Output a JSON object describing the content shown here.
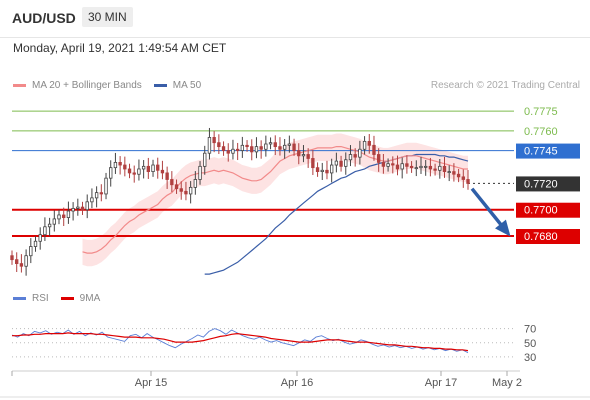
{
  "header": {
    "pair": "AUD/USD",
    "interval": "30 MIN",
    "datetime": "Monday, April 19, 2021 1:49:54 AM CET"
  },
  "legend": {
    "ma20": "MA 20 + Bollinger Bands",
    "ma50": "MA 50",
    "credit": "Research © 2021 Trading Central",
    "rsi": "RSI",
    "ma9": "9MA"
  },
  "colors": {
    "ma20": "#f28a8a",
    "band_fill": "#fde3e3",
    "ma50": "#3a5ea8",
    "green_level": "#7dbb4e",
    "blue_level": "#2f6fd0",
    "red_level": "#dd0000",
    "current_price_bg": "#333333",
    "candle_up": "#444444",
    "candle_down": "#b04040",
    "arrow": "#2f5fa8",
    "rsi": "#5b7fd6",
    "rsi_ma": "#dd0000"
  },
  "chart_data": [
    {
      "type": "candlestick",
      "title": "AUD/USD",
      "interval": "30 MIN",
      "x_ticks": [
        "Apr 15",
        "Apr 16",
        "Apr 17",
        "May 2"
      ],
      "ylim": [
        0.7645,
        0.7785
      ],
      "levels": [
        {
          "value": 0.7775,
          "label": "0.7775",
          "kind": "resistance",
          "color": "#7dbb4e"
        },
        {
          "value": 0.776,
          "label": "0.7760",
          "kind": "resistance",
          "color": "#7dbb4e"
        },
        {
          "value": 0.7745,
          "label": "0.7745",
          "kind": "pivot",
          "color": "#2f6fd0"
        },
        {
          "value": 0.772,
          "label": "0.7720",
          "kind": "current",
          "color": "#333333"
        },
        {
          "value": 0.77,
          "label": "0.7700",
          "kind": "support",
          "color": "#dd0000"
        },
        {
          "value": 0.768,
          "label": "0.7680",
          "kind": "support",
          "color": "#dd0000"
        }
      ],
      "close": [
        0.7662,
        0.7659,
        0.7657,
        0.7665,
        0.7672,
        0.7676,
        0.7681,
        0.7687,
        0.7689,
        0.7693,
        0.7696,
        0.7694,
        0.7699,
        0.7701,
        0.7702,
        0.77,
        0.7706,
        0.7709,
        0.7713,
        0.7712,
        0.7724,
        0.7732,
        0.7736,
        0.7734,
        0.7731,
        0.7728,
        0.7727,
        0.7731,
        0.7733,
        0.7729,
        0.7734,
        0.773,
        0.7728,
        0.7723,
        0.7719,
        0.7716,
        0.7714,
        0.7712,
        0.7717,
        0.7723,
        0.7733,
        0.7743,
        0.7755,
        0.7751,
        0.7748,
        0.7745,
        0.7743,
        0.7746,
        0.7745,
        0.7749,
        0.7748,
        0.7744,
        0.7748,
        0.7746,
        0.775,
        0.7751,
        0.7748,
        0.7746,
        0.7749,
        0.775,
        0.7745,
        0.7741,
        0.7742,
        0.7739,
        0.7732,
        0.7729,
        0.773,
        0.7728,
        0.7734,
        0.7737,
        0.7733,
        0.7738,
        0.7742,
        0.774,
        0.7746,
        0.7752,
        0.7749,
        0.7742,
        0.7736,
        0.7733,
        0.7735,
        0.7734,
        0.7731,
        0.7735,
        0.7733,
        0.7732,
        0.7732,
        0.7733,
        0.7733,
        0.7731,
        0.773,
        0.7733,
        0.7729,
        0.7729,
        0.7727,
        0.7725,
        0.7723,
        0.772
      ],
      "ma20": [
        0.7668,
        0.7667,
        0.7667,
        0.7668,
        0.767,
        0.7673,
        0.7677,
        0.768,
        0.7684,
        0.7688,
        0.7691,
        0.7693,
        0.7696,
        0.7698,
        0.77,
        0.7702,
        0.7704,
        0.7708,
        0.7711,
        0.7713,
        0.7717,
        0.7721,
        0.7724,
        0.7726,
        0.7727,
        0.7728,
        0.7728,
        0.7729,
        0.773,
        0.7729,
        0.773,
        0.7729,
        0.7728,
        0.7726,
        0.7724,
        0.7723,
        0.7722,
        0.7722,
        0.7723,
        0.7726,
        0.7729,
        0.7733,
        0.7737,
        0.7739,
        0.7741,
        0.7742,
        0.7743,
        0.7744,
        0.7745,
        0.7746,
        0.7747,
        0.7747,
        0.7747,
        0.7747,
        0.7748,
        0.7748,
        0.7747,
        0.7746,
        0.7745,
        0.7744,
        0.7742,
        0.774,
        0.7739,
        0.7738,
        0.7737,
        0.7737,
        0.7738,
        0.7739,
        0.774,
        0.7741,
        0.7741,
        0.7741,
        0.774,
        0.7739,
        0.7738,
        0.7737,
        0.7736,
        0.7735,
        0.7734,
        0.7733,
        0.7732,
        0.7731,
        0.7731
      ],
      "ma50": [
        0.7651,
        0.7651,
        0.7652,
        0.7653,
        0.7654,
        0.7656,
        0.7658,
        0.766,
        0.7663,
        0.7666,
        0.7669,
        0.7672,
        0.7675,
        0.7678,
        0.7682,
        0.7686,
        0.7689,
        0.7692,
        0.7696,
        0.7699,
        0.7702,
        0.7705,
        0.7708,
        0.7711,
        0.7714,
        0.7716,
        0.7718,
        0.772,
        0.7722,
        0.7724,
        0.7725,
        0.7727,
        0.7729,
        0.773,
        0.7731,
        0.7733,
        0.7734,
        0.7735,
        0.7736,
        0.7737,
        0.7738,
        0.7739,
        0.774,
        0.7741,
        0.7741,
        0.7742,
        0.7742,
        0.7742,
        0.7742,
        0.7742,
        0.7741,
        0.7741,
        0.774,
        0.774,
        0.7739,
        0.7738,
        0.7737
      ],
      "arrow": {
        "from": 0.7716,
        "to": 0.7682
      }
    },
    {
      "type": "line",
      "title": "RSI",
      "series": [
        {
          "name": "RSI",
          "values": [
            61,
            58,
            63,
            60,
            66,
            64,
            67,
            62,
            65,
            63,
            68,
            62,
            66,
            60,
            64,
            61,
            65,
            58,
            56,
            54,
            52,
            60,
            62,
            57,
            63,
            58,
            54,
            50,
            46,
            43,
            48,
            52,
            56,
            61,
            58,
            66,
            70,
            67,
            62,
            68,
            64,
            60,
            57,
            55,
            58,
            54,
            51,
            53,
            50,
            48,
            46,
            50,
            54,
            52,
            58,
            60,
            56,
            53,
            55,
            51,
            48,
            50,
            54,
            52,
            48,
            45,
            47,
            44,
            46,
            43,
            45,
            42,
            44,
            41,
            43,
            40,
            42,
            39,
            41,
            38,
            40,
            36
          ]
        },
        {
          "name": "9MA",
          "values": [
            60,
            60,
            61,
            61,
            62,
            62,
            63,
            63,
            63,
            63,
            64,
            63,
            63,
            63,
            63,
            62,
            62,
            61,
            60,
            59,
            58,
            58,
            58,
            57,
            57,
            57,
            56,
            55,
            53,
            51,
            51,
            51,
            51,
            52,
            53,
            55,
            57,
            59,
            60,
            62,
            63,
            62,
            61,
            60,
            59,
            58,
            56,
            55,
            54,
            53,
            52,
            51,
            51,
            51,
            52,
            53,
            54,
            54,
            54,
            53,
            52,
            51,
            51,
            51,
            50,
            49,
            48,
            47,
            47,
            46,
            45,
            45,
            44,
            43,
            43,
            42,
            42,
            41,
            41,
            40,
            40,
            39
          ]
        }
      ],
      "ylim": [
        20,
        85
      ],
      "y_ticks": [
        70,
        50,
        30
      ]
    }
  ]
}
